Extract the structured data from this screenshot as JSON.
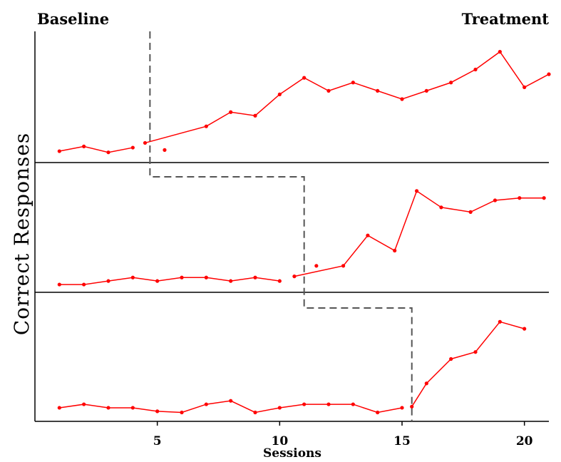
{
  "chart_data": {
    "type": "line",
    "phase_labels": {
      "left": "Baseline",
      "right": "Treatment"
    },
    "xlabel": "Sessions",
    "ylabel": "Correct Responses",
    "xlim": [
      0,
      21
    ],
    "x_ticks": [
      5,
      10,
      15,
      20
    ],
    "ylim": [
      0,
      10
    ],
    "grid": false,
    "line_color": "#ff0000",
    "phase_line_color": "#555555",
    "panels": [
      {
        "baseline": {
          "x": [
            1,
            2,
            3,
            4
          ],
          "y": [
            0.6,
            1.0,
            0.5,
            0.9
          ]
        },
        "treatment": {
          "x": [
            4.5,
            7,
            8,
            9,
            10,
            11,
            12,
            13,
            14,
            15,
            16,
            17,
            18,
            19,
            20,
            21
          ],
          "y": [
            1.3,
            2.7,
            3.9,
            3.6,
            5.4,
            6.8,
            5.7,
            6.4,
            5.7,
            5.0,
            5.7,
            6.4,
            7.5,
            9.0,
            6.0,
            7.1
          ]
        },
        "isolated_points": [
          {
            "x": 5.3,
            "y": 0.7
          }
        ],
        "phase_change_x": 4.7
      },
      {
        "baseline": {
          "x": [
            1,
            2,
            3,
            4,
            5,
            6,
            7,
            8,
            9,
            10
          ],
          "y": [
            0.3,
            0.3,
            0.6,
            0.9,
            0.6,
            0.9,
            0.9,
            0.6,
            0.9,
            0.6
          ]
        },
        "treatment": {
          "x": [
            10.6,
            12.6,
            13.6,
            14.7,
            15.6,
            16.6,
            17.8,
            18.8,
            19.8,
            20.8
          ],
          "y": [
            1.0,
            1.9,
            4.5,
            3.2,
            8.3,
            6.9,
            6.5,
            7.5,
            7.7,
            7.7
          ]
        },
        "isolated_points": [
          {
            "x": 11.5,
            "y": 1.9
          }
        ],
        "phase_change_x": 11
      },
      {
        "baseline": {
          "x": [
            1,
            2,
            3,
            4,
            5,
            6,
            7,
            8,
            9,
            10,
            11,
            12,
            13,
            14,
            15
          ],
          "y": [
            0.8,
            1.1,
            0.8,
            0.8,
            0.5,
            0.4,
            1.1,
            1.4,
            0.4,
            0.8,
            1.1,
            1.1,
            1.1,
            0.4,
            0.8
          ]
        },
        "treatment": {
          "x": [
            15.4,
            16,
            17,
            18,
            19,
            20
          ],
          "y": [
            0.9,
            2.9,
            5.0,
            5.6,
            8.2,
            7.6
          ]
        },
        "isolated_points": [],
        "phase_change_x": 15.4
      }
    ]
  }
}
